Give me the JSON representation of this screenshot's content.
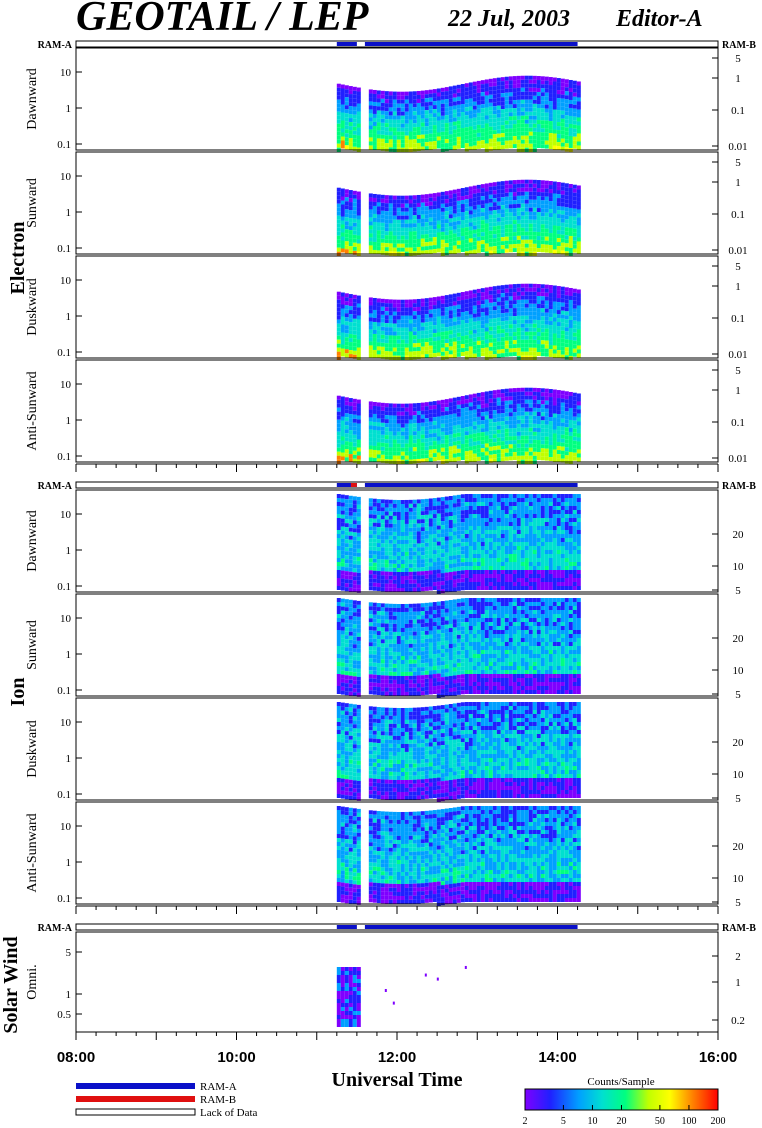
{
  "header": {
    "title": "GEOTAIL / LEP",
    "date": "22 Jul, 2003",
    "editor": "Editor-A"
  },
  "colors": {
    "ram_a": "#0a10c8",
    "ram_b": "#e01010",
    "spectrum": [
      "#7f00ff",
      "#2020ff",
      "#00a0ff",
      "#00e0d0",
      "#00ff80",
      "#c0ff00",
      "#ffff00",
      "#ff8000",
      "#ff0000"
    ]
  },
  "chart_data": {
    "type": "heatmap",
    "xlabel": "Universal Time",
    "x_ticks": [
      "08:00",
      "10:00",
      "12:00",
      "14:00",
      "16:00"
    ],
    "xlim_hours": [
      8,
      16
    ],
    "data_coverage_hours": [
      11.25,
      14.25
    ],
    "data_gap_hours": [
      11.5,
      11.6
    ],
    "ram_bar_labels": {
      "left": "RAM-A",
      "right": "RAM-B"
    },
    "groups": [
      {
        "name": "Electron",
        "panels": [
          {
            "label": "Dawnward",
            "left_ticks": [
              "10",
              "1",
              "0.1"
            ],
            "right_ticks": [
              "5",
              "1",
              "0.1",
              "0.01"
            ]
          },
          {
            "label": "Sunward",
            "left_ticks": [
              "10",
              "1",
              "0.1"
            ],
            "right_ticks": [
              "5",
              "1",
              "0.1",
              "0.01"
            ]
          },
          {
            "label": "Duskward",
            "left_ticks": [
              "10",
              "1",
              "0.1"
            ],
            "right_ticks": [
              "5",
              "1",
              "0.1",
              "0.01"
            ]
          },
          {
            "label": "Anti-Sunward",
            "left_ticks": [
              "10",
              "1",
              "0.1"
            ],
            "right_ticks": [
              "5",
              "1",
              "0.1",
              "0.01"
            ]
          }
        ]
      },
      {
        "name": "Ion",
        "panels": [
          {
            "label": "Dawnward",
            "left_ticks": [
              "10",
              "1",
              "0.1"
            ],
            "right_ticks": [
              "20",
              "10",
              "5"
            ]
          },
          {
            "label": "Sunward",
            "left_ticks": [
              "10",
              "1",
              "0.1"
            ],
            "right_ticks": [
              "20",
              "10",
              "5"
            ]
          },
          {
            "label": "Duskward",
            "left_ticks": [
              "10",
              "1",
              "0.1"
            ],
            "right_ticks": [
              "20",
              "10",
              "5"
            ]
          },
          {
            "label": "Anti-Sunward",
            "left_ticks": [
              "10",
              "1",
              "0.1"
            ],
            "right_ticks": [
              "20",
              "10",
              "5"
            ]
          }
        ]
      },
      {
        "name": "Solar Wind",
        "panels": [
          {
            "label": "Omni.",
            "left_ticks": [
              "5",
              "1",
              "0.5"
            ],
            "right_ticks": [
              "2",
              "1",
              "0.2"
            ]
          }
        ]
      }
    ],
    "legend": {
      "ram_a": "RAM-A",
      "ram_b": "RAM-B",
      "lack": "Lack of Data"
    },
    "colorbar": {
      "title": "Counts/Sample",
      "ticks": [
        "2",
        "5",
        "10",
        "20",
        "50",
        "100",
        "200"
      ],
      "range": [
        2,
        200
      ],
      "scale": "log"
    }
  }
}
